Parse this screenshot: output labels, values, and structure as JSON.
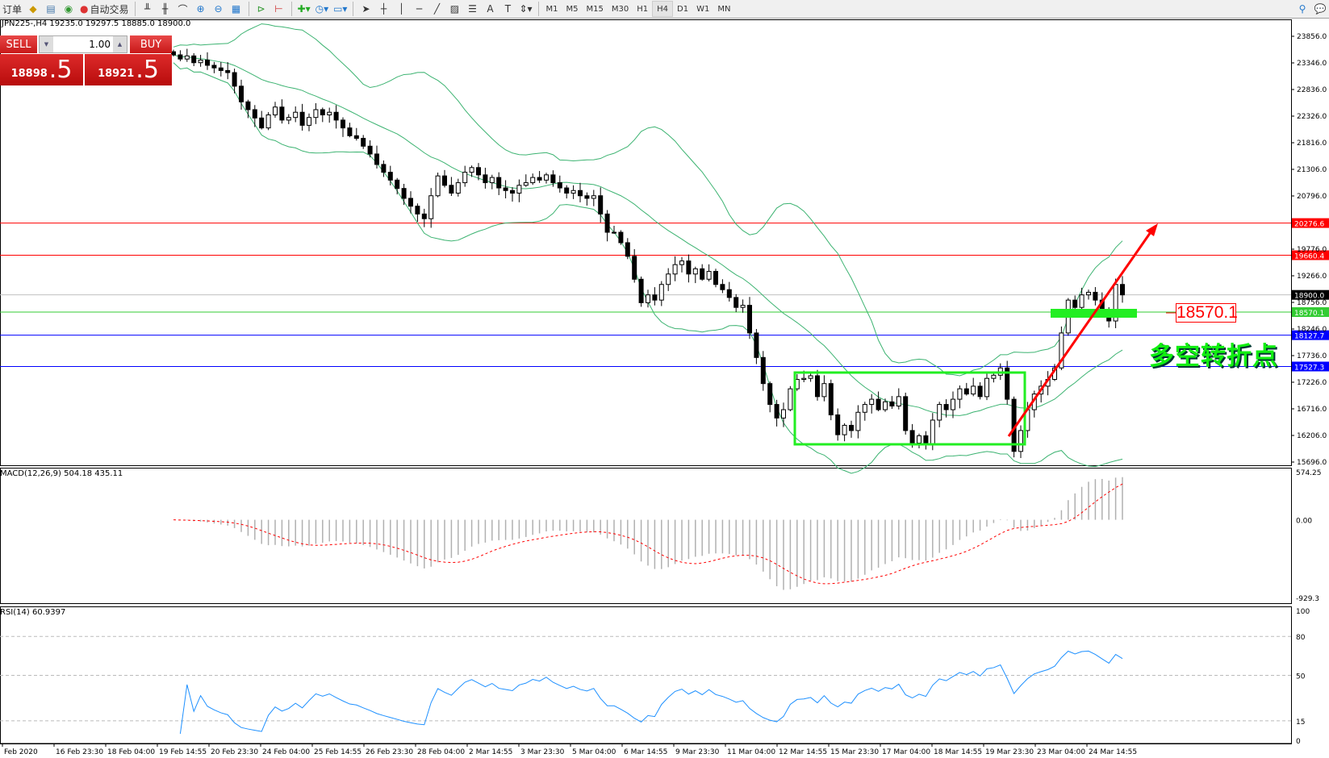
{
  "toolbar": {
    "items": [
      {
        "label": "订单",
        "icon": "new-order-icon"
      },
      {
        "label": "",
        "icon": "metaeditor-icon"
      },
      {
        "label": "",
        "icon": "terminal-icon"
      },
      {
        "label": "",
        "icon": "signals-icon"
      },
      {
        "label": "自动交易",
        "icon": "autotrading-icon"
      }
    ],
    "tools": [
      "bar-chart-icon",
      "candlestick-icon",
      "line-chart-icon",
      "zoom-in-icon",
      "zoom-out-icon",
      "tile-windows-icon",
      "auto-scroll-icon",
      "chart-shift-icon",
      "indicators-icon",
      "periods-icon",
      "templates-icon",
      "cursor-icon",
      "crosshair-icon",
      "vertical-line-icon",
      "horizontal-line-icon",
      "trendline-icon",
      "fibo-icon",
      "channel-icon",
      "text-icon",
      "label-icon",
      "arrows-icon"
    ],
    "timeframes": [
      "M1",
      "M5",
      "M15",
      "M30",
      "H1",
      "H4",
      "D1",
      "W1",
      "MN"
    ],
    "active_timeframe": "H4"
  },
  "symbol_info": "JPN225-,H4  19235.0 19297.5 18885.0 18900.0",
  "one_click": {
    "sell_label": "SELL",
    "buy_label": "BUY",
    "lot": "1.00",
    "sell_price_main": "18898",
    "sell_price_big": ".5",
    "buy_price_main": "18921",
    "buy_price_big": ".5"
  },
  "colors": {
    "bull": "#ffffff",
    "bear": "#000000",
    "bands": "#3cb371",
    "macd_hist": "#b0b0b0",
    "macd_signal": "#ff0000",
    "rsi": "#1e90ff",
    "arrow": "#ff0000",
    "box": "#22ee22"
  },
  "annotations": {
    "level_tag": "18570.1",
    "text": "多空转折点"
  },
  "price_axis": {
    "ticks": [
      23856.0,
      23346.0,
      22836.0,
      22326.0,
      21816.0,
      21306.0,
      20796.0,
      19776.0,
      19266.0,
      18756.0,
      18246.0,
      17736.0,
      17226.0,
      16716.0,
      16206.0,
      15696.0
    ],
    "range": [
      15696.0,
      23856.0
    ]
  },
  "levels": [
    {
      "price": "20276.6",
      "color": "#ff0000"
    },
    {
      "price": "19660.4",
      "color": "#ff0000"
    },
    {
      "price": "18900.0",
      "color": "#000000",
      "line": "#c0c0c0"
    },
    {
      "price": "18570.1",
      "color": "#33cc33"
    },
    {
      "price": "18127.7",
      "color": "#0000ff"
    },
    {
      "price": "17527.3",
      "color": "#0000ff"
    }
  ],
  "macd": {
    "label": "MACD(12,26,9) 504.18 435.11",
    "axis": [
      "574.25",
      "0.00",
      "-929.3"
    ],
    "range": [
      -929.3,
      574.25
    ]
  },
  "rsi": {
    "label": "RSI(14) 60.9397",
    "axis": [
      "100",
      "80",
      "50",
      "15",
      "0"
    ],
    "levels": [
      80,
      50,
      15
    ]
  },
  "time_axis": [
    "Feb 2020",
    "16 Feb 23:30",
    "18 Feb 04:00",
    "19 Feb 14:55",
    "20 Feb 23:30",
    "24 Feb 04:00",
    "25 Feb 14:55",
    "26 Feb 23:30",
    "28 Feb 04:00",
    "2 Mar 14:55",
    "3 Mar 23:30",
    "5 Mar 04:00",
    "6 Mar 14:55",
    "9 Mar 23:30",
    "11 Mar 04:00",
    "12 Mar 14:55",
    "15 Mar 23:30",
    "17 Mar 04:00",
    "18 Mar 14:55",
    "19 Mar 23:30",
    "23 Mar 04:00",
    "24 Mar 14:55"
  ],
  "chart_data": {
    "type": "candlestick",
    "symbol": "JPN225-",
    "timeframe": "H4",
    "indicators": [
      "Bollinger Bands",
      "MACD(12,26,9)",
      "RSI(14)"
    ],
    "closes": [
      23500,
      23420,
      23480,
      23350,
      23400,
      23300,
      23250,
      23200,
      23160,
      22900,
      22600,
      22450,
      22290,
      22100,
      22350,
      22500,
      22250,
      22300,
      22400,
      22150,
      22300,
      22450,
      22350,
      22400,
      22250,
      22100,
      21950,
      21900,
      21750,
      21600,
      21400,
      21250,
      21100,
      20940,
      20750,
      20600,
      20450,
      20360,
      20800,
      21180,
      21000,
      20850,
      21050,
      21250,
      21340,
      21200,
      21050,
      21150,
      20950,
      20900,
      20850,
      21000,
      21050,
      21150,
      21100,
      21200,
      21050,
      20950,
      20850,
      20900,
      20800,
      20750,
      20800,
      20450,
      20100,
      20100,
      19900,
      19640,
      19200,
      18750,
      18900,
      18800,
      19100,
      19300,
      19480,
      19550,
      19300,
      19400,
      19200,
      19350,
      19100,
      19000,
      18850,
      18660,
      18700,
      18170,
      17700,
      17200,
      16800,
      16540,
      16700,
      17100,
      17280,
      17300,
      17350,
      16950,
      17200,
      16600,
      16220,
      16400,
      16300,
      16650,
      16800,
      16900,
      16700,
      16850,
      16770,
      16950,
      16300,
      16060,
      16200,
      16050,
      16500,
      16800,
      16700,
      16900,
      17100,
      17000,
      17150,
      16950,
      17300,
      17360,
      17500,
      16900,
      15900,
      16300,
      16700,
      17000,
      17150,
      17280,
      17500,
      18170,
      18800,
      18660,
      18900,
      18950,
      18800,
      18600,
      18400,
      19100,
      18900
    ]
  }
}
